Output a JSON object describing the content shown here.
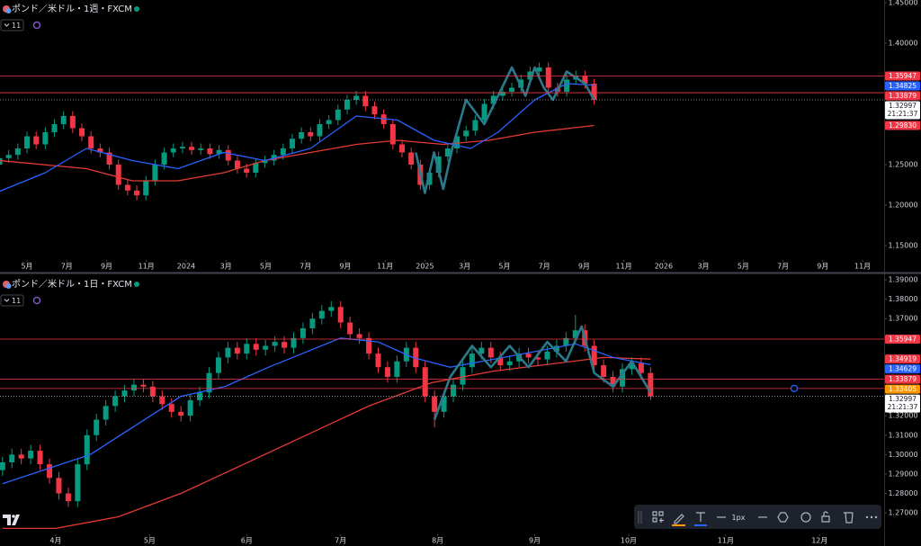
{
  "chart_data": [
    {
      "type": "candlestick",
      "title": "ポンド／米ドル・1週・FXCM",
      "interval": "11",
      "up_color": "#089981",
      "down_color": "#f23645",
      "xlim": [
        -5.9,
        187.4
      ],
      "xticks": [
        {
          "value": 0,
          "label": "5月"
        },
        {
          "value": 8.7,
          "label": "7月"
        },
        {
          "value": 17.4,
          "label": "9月"
        },
        {
          "value": 26.1,
          "label": "11月"
        },
        {
          "value": 34.8,
          "label": "2024"
        },
        {
          "value": 43.5,
          "label": "3月"
        },
        {
          "value": 52.2,
          "label": "5月"
        },
        {
          "value": 60.9,
          "label": "7月"
        },
        {
          "value": 69.6,
          "label": "9月"
        },
        {
          "value": 78.3,
          "label": "11月"
        },
        {
          "value": 87,
          "label": "2025"
        },
        {
          "value": 95.7,
          "label": "3月"
        },
        {
          "value": 104.4,
          "label": "5月"
        },
        {
          "value": 113.1,
          "label": "7月"
        },
        {
          "value": 121.8,
          "label": "9月"
        },
        {
          "value": 130.5,
          "label": "11月"
        },
        {
          "value": 139.2,
          "label": "2026"
        },
        {
          "value": 147.9,
          "label": "3月"
        },
        {
          "value": 156.6,
          "label": "5月"
        },
        {
          "value": 165.3,
          "label": "7月"
        },
        {
          "value": 174,
          "label": "9月"
        },
        {
          "value": 182.7,
          "label": "11月"
        }
      ],
      "ylim": [
        1.1367,
        1.4533
      ],
      "yticks": [
        {
          "value": 1.45,
          "label": "1.45000"
        },
        {
          "value": 1.4,
          "label": "1.40000"
        },
        {
          "value": 1.25,
          "label": "1.25000"
        },
        {
          "value": 1.2,
          "label": "1.20000"
        },
        {
          "value": 1.15,
          "label": "1.15000"
        }
      ],
      "x": [
        -6,
        -4,
        -2,
        0,
        2,
        4,
        6,
        8,
        10,
        12,
        14,
        16,
        18,
        20,
        22,
        24,
        26,
        28,
        30,
        32,
        34,
        36,
        38,
        40,
        42,
        44,
        46,
        48,
        50,
        52,
        54,
        56,
        58,
        60,
        62,
        64,
        66,
        68,
        70,
        72,
        74,
        76,
        78,
        80,
        82,
        84,
        86,
        88,
        90,
        92,
        94,
        96,
        98,
        100,
        102,
        104,
        106,
        108,
        110,
        112,
        114,
        116,
        118,
        120,
        122,
        124
      ],
      "open": [
        1.25,
        1.258,
        1.262,
        1.27,
        1.285,
        1.275,
        1.29,
        1.3,
        1.31,
        1.295,
        1.285,
        1.27,
        1.265,
        1.25,
        1.225,
        1.218,
        1.212,
        1.23,
        1.25,
        1.265,
        1.27,
        1.272,
        1.268,
        1.27,
        1.263,
        1.268,
        1.255,
        1.245,
        1.24,
        1.252,
        1.255,
        1.262,
        1.27,
        1.282,
        1.29,
        1.285,
        1.3,
        1.305,
        1.318,
        1.33,
        1.335,
        1.322,
        1.312,
        1.3,
        1.275,
        1.265,
        1.25,
        1.225,
        1.24,
        1.26,
        1.27,
        1.285,
        1.292,
        1.305,
        1.325,
        1.335,
        1.34,
        1.345,
        1.355,
        1.365,
        1.37,
        1.345,
        1.34,
        1.355,
        1.36,
        1.35
      ],
      "high": [
        1.264,
        1.268,
        1.276,
        1.291,
        1.291,
        1.296,
        1.306,
        1.316,
        1.316,
        1.301,
        1.291,
        1.276,
        1.271,
        1.256,
        1.231,
        1.224,
        1.236,
        1.256,
        1.271,
        1.276,
        1.278,
        1.278,
        1.276,
        1.276,
        1.274,
        1.274,
        1.261,
        1.251,
        1.258,
        1.261,
        1.268,
        1.276,
        1.288,
        1.296,
        1.296,
        1.306,
        1.311,
        1.324,
        1.336,
        1.341,
        1.341,
        1.328,
        1.318,
        1.306,
        1.281,
        1.271,
        1.256,
        1.246,
        1.266,
        1.276,
        1.291,
        1.298,
        1.311,
        1.331,
        1.341,
        1.346,
        1.351,
        1.361,
        1.371,
        1.376,
        1.376,
        1.351,
        1.361,
        1.366,
        1.366,
        1.356
      ],
      "low": [
        1.244,
        1.252,
        1.256,
        1.264,
        1.269,
        1.269,
        1.284,
        1.294,
        1.289,
        1.279,
        1.264,
        1.259,
        1.244,
        1.219,
        1.212,
        1.206,
        1.206,
        1.224,
        1.244,
        1.259,
        1.264,
        1.262,
        1.262,
        1.257,
        1.257,
        1.249,
        1.239,
        1.234,
        1.234,
        1.246,
        1.249,
        1.256,
        1.264,
        1.276,
        1.279,
        1.279,
        1.294,
        1.299,
        1.312,
        1.324,
        1.316,
        1.306,
        1.294,
        1.269,
        1.259,
        1.244,
        1.219,
        1.219,
        1.234,
        1.254,
        1.264,
        1.279,
        1.286,
        1.299,
        1.319,
        1.329,
        1.334,
        1.339,
        1.349,
        1.359,
        1.339,
        1.334,
        1.334,
        1.349,
        1.344,
        1.324
      ],
      "close": [
        1.258,
        1.262,
        1.27,
        1.285,
        1.275,
        1.29,
        1.3,
        1.31,
        1.295,
        1.285,
        1.27,
        1.265,
        1.25,
        1.225,
        1.218,
        1.212,
        1.23,
        1.25,
        1.265,
        1.27,
        1.272,
        1.268,
        1.27,
        1.263,
        1.268,
        1.255,
        1.245,
        1.24,
        1.252,
        1.255,
        1.262,
        1.27,
        1.282,
        1.29,
        1.285,
        1.3,
        1.305,
        1.318,
        1.33,
        1.335,
        1.322,
        1.312,
        1.3,
        1.275,
        1.265,
        1.25,
        1.225,
        1.24,
        1.26,
        1.27,
        1.285,
        1.292,
        1.305,
        1.325,
        1.335,
        1.34,
        1.345,
        1.355,
        1.365,
        1.37,
        1.345,
        1.34,
        1.355,
        1.36,
        1.35,
        1.32997
      ],
      "series": [
        {
          "color": "#e53935",
          "width": 1.3,
          "x": [
            -6,
            13,
            23,
            33,
            43,
            52,
            62,
            72,
            81,
            91,
            101,
            111,
            124
          ],
          "values": [
            1.255,
            1.245,
            1.23,
            1.23,
            1.24,
            1.255,
            1.265,
            1.275,
            1.28,
            1.275,
            1.28,
            1.29,
            1.2983
          ]
        },
        {
          "color": "#2962ff",
          "width": 1.3,
          "x": [
            -6,
            4,
            13,
            23,
            33,
            43,
            52,
            62,
            72,
            81,
            89,
            97,
            103,
            111,
            118,
            124
          ],
          "values": [
            1.217,
            1.24,
            1.27,
            1.255,
            1.245,
            1.265,
            1.255,
            1.27,
            1.31,
            1.305,
            1.28,
            1.27,
            1.29,
            1.33,
            1.35,
            1.34825
          ]
        },
        {
          "color": "#2b7a8c",
          "width": 2.6,
          "x": [
            85,
            87,
            89,
            91,
            93,
            96,
            100,
            106,
            109,
            111,
            113,
            115,
            118,
            122,
            124
          ],
          "values": [
            1.265,
            1.215,
            1.265,
            1.22,
            1.27,
            1.33,
            1.3,
            1.37,
            1.335,
            1.37,
            1.345,
            1.33,
            1.365,
            1.35,
            1.33
          ]
        }
      ],
      "hlines": [
        {
          "value": 1.35947,
          "color": "#f23645"
        },
        {
          "value": 1.33879,
          "color": "#f23645"
        },
        {
          "value": 1.32997,
          "color": "#b2b5be",
          "dotted": true
        }
      ],
      "price_tags": [
        {
          "value": 1.35947,
          "color": "#f23645"
        },
        {
          "value": 1.34825,
          "color": "#2962ff"
        },
        {
          "value": 1.33879,
          "color": "#f23645"
        },
        {
          "value": 1.32997,
          "color": "#ffffff",
          "timer": "21:21:37"
        },
        {
          "value": 1.2983,
          "label": "1.29830",
          "color": "#f23645"
        }
      ]
    },
    {
      "type": "candlestick",
      "title": "ポンド／米ドル・1日・FXCM",
      "interval": "11",
      "up_color": "#089981",
      "down_color": "#f23645",
      "xlim": [
        -17.8,
        264.6
      ],
      "xticks": [
        {
          "value": 0,
          "label": "4月"
        },
        {
          "value": 30,
          "label": "5月"
        },
        {
          "value": 61,
          "label": "6月"
        },
        {
          "value": 91,
          "label": "7月"
        },
        {
          "value": 122,
          "label": "8月"
        },
        {
          "value": 153,
          "label": "9月"
        },
        {
          "value": 183,
          "label": "10月"
        },
        {
          "value": 214,
          "label": "11月"
        },
        {
          "value": 244,
          "label": "12月"
        }
      ],
      "ylim": [
        1.2608,
        1.3928
      ],
      "yticks": [
        {
          "value": 1.39,
          "label": "1.39000"
        },
        {
          "value": 1.38,
          "label": "1.38000"
        },
        {
          "value": 1.37,
          "label": "1.37000"
        },
        {
          "value": 1.32,
          "label": "1.32000"
        },
        {
          "value": 1.31,
          "label": "1.31000"
        },
        {
          "value": 1.3,
          "label": "1.30000"
        },
        {
          "value": 1.29,
          "label": "1.29000"
        },
        {
          "value": 1.28,
          "label": "1.28000"
        },
        {
          "value": 1.27,
          "label": "1.27000"
        }
      ],
      "x": [
        -17,
        -14,
        -11,
        -8,
        -5,
        -2,
        1,
        4,
        7,
        10,
        13,
        16,
        19,
        22,
        25,
        28,
        31,
        34,
        37,
        40,
        43,
        46,
        49,
        52,
        55,
        58,
        61,
        64,
        67,
        70,
        73,
        76,
        79,
        82,
        85,
        88,
        91,
        94,
        97,
        100,
        103,
        106,
        109,
        112,
        115,
        118,
        121,
        124,
        127,
        130,
        133,
        136,
        139,
        142,
        145,
        148,
        151,
        154,
        157,
        160,
        163,
        166,
        169,
        172,
        175,
        178,
        181,
        184,
        187,
        190
      ],
      "open": [
        1.292,
        1.296,
        1.3,
        1.298,
        1.302,
        1.295,
        1.288,
        1.28,
        1.276,
        1.295,
        1.31,
        1.318,
        1.325,
        1.33,
        1.333,
        1.336,
        1.335,
        1.33,
        1.326,
        1.322,
        1.32,
        1.328,
        1.332,
        1.342,
        1.35,
        1.355,
        1.352,
        1.357,
        1.354,
        1.356,
        1.358,
        1.355,
        1.36,
        1.365,
        1.37,
        1.374,
        1.376,
        1.368,
        1.362,
        1.36,
        1.352,
        1.345,
        1.34,
        1.348,
        1.355,
        1.345,
        1.33,
        1.322,
        1.33,
        1.336,
        1.345,
        1.352,
        1.355,
        1.35,
        1.346,
        1.348,
        1.352,
        1.35,
        1.349,
        1.353,
        1.356,
        1.36,
        1.364,
        1.356,
        1.346,
        1.34,
        1.335,
        1.344,
        1.347,
        1.342
      ],
      "high": [
        1.299,
        1.303,
        1.303,
        1.305,
        1.305,
        1.298,
        1.291,
        1.283,
        1.298,
        1.313,
        1.321,
        1.328,
        1.333,
        1.336,
        1.339,
        1.339,
        1.338,
        1.333,
        1.329,
        1.325,
        1.331,
        1.335,
        1.345,
        1.353,
        1.358,
        1.358,
        1.36,
        1.36,
        1.359,
        1.361,
        1.361,
        1.363,
        1.368,
        1.373,
        1.377,
        1.379,
        1.379,
        1.371,
        1.365,
        1.363,
        1.355,
        1.348,
        1.351,
        1.358,
        1.358,
        1.348,
        1.333,
        1.333,
        1.339,
        1.348,
        1.355,
        1.358,
        1.358,
        1.353,
        1.351,
        1.355,
        1.355,
        1.353,
        1.356,
        1.359,
        1.363,
        1.372,
        1.367,
        1.359,
        1.349,
        1.343,
        1.347,
        1.35,
        1.35,
        1.345
      ],
      "low": [
        1.289,
        1.293,
        1.295,
        1.295,
        1.292,
        1.285,
        1.277,
        1.273,
        1.273,
        1.292,
        1.307,
        1.315,
        1.322,
        1.327,
        1.33,
        1.332,
        1.327,
        1.323,
        1.319,
        1.317,
        1.317,
        1.325,
        1.329,
        1.339,
        1.347,
        1.349,
        1.349,
        1.351,
        1.351,
        1.353,
        1.352,
        1.352,
        1.357,
        1.362,
        1.367,
        1.371,
        1.365,
        1.359,
        1.357,
        1.349,
        1.342,
        1.337,
        1.337,
        1.345,
        1.342,
        1.327,
        1.314,
        1.319,
        1.327,
        1.333,
        1.342,
        1.349,
        1.347,
        1.343,
        1.343,
        1.345,
        1.347,
        1.346,
        1.346,
        1.35,
        1.353,
        1.357,
        1.353,
        1.343,
        1.337,
        1.332,
        1.332,
        1.341,
        1.339,
        1.328
      ],
      "close": [
        1.296,
        1.3,
        1.298,
        1.302,
        1.295,
        1.288,
        1.28,
        1.276,
        1.295,
        1.31,
        1.318,
        1.325,
        1.33,
        1.333,
        1.336,
        1.335,
        1.33,
        1.326,
        1.322,
        1.32,
        1.328,
        1.332,
        1.342,
        1.35,
        1.355,
        1.352,
        1.357,
        1.354,
        1.356,
        1.358,
        1.355,
        1.36,
        1.365,
        1.37,
        1.374,
        1.376,
        1.368,
        1.362,
        1.36,
        1.352,
        1.345,
        1.34,
        1.348,
        1.355,
        1.345,
        1.33,
        1.322,
        1.33,
        1.336,
        1.345,
        1.352,
        1.355,
        1.35,
        1.346,
        1.348,
        1.352,
        1.35,
        1.349,
        1.353,
        1.356,
        1.36,
        1.364,
        1.356,
        1.346,
        1.34,
        1.335,
        1.344,
        1.347,
        1.342,
        1.32997
      ],
      "series": [
        {
          "color": "#e53935",
          "width": 1.3,
          "x": [
            -17,
            0,
            20,
            40,
            60,
            80,
            100,
            120,
            140,
            160,
            175,
            190
          ],
          "values": [
            1.262,
            1.262,
            1.268,
            1.28,
            1.295,
            1.31,
            1.325,
            1.337,
            1.343,
            1.347,
            1.35,
            1.34919
          ]
        },
        {
          "color": "#2962ff",
          "width": 1.3,
          "x": [
            -17,
            11,
            40,
            54,
            68,
            91,
            103,
            114,
            126,
            143,
            166,
            178,
            190
          ],
          "values": [
            1.285,
            1.3,
            1.33,
            1.335,
            1.345,
            1.36,
            1.358,
            1.35,
            1.345,
            1.35,
            1.357,
            1.35,
            1.34629
          ]
        },
        {
          "color": "#2b7a8c",
          "width": 2.6,
          "x": [
            121,
            126,
            133,
            139,
            145,
            151,
            157,
            163,
            168,
            172,
            178,
            184,
            190
          ],
          "values": [
            1.318,
            1.34,
            1.356,
            1.345,
            1.356,
            1.345,
            1.358,
            1.348,
            1.366,
            1.342,
            1.335,
            1.348,
            1.332
          ]
        }
      ],
      "hlines": [
        {
          "value": 1.35947,
          "color": "#f23645"
        },
        {
          "value": 1.33879,
          "color": "#f23645"
        },
        {
          "value": 1.33405,
          "color": "#f23645",
          "handle": true
        },
        {
          "value": 1.32997,
          "color": "#b2b5be",
          "dotted": true
        }
      ],
      "price_tags": [
        {
          "value": 1.35947,
          "color": "#f23645"
        },
        {
          "value": 1.34919,
          "color": "#f23645"
        },
        {
          "value": 1.34629,
          "color": "#2962ff"
        },
        {
          "value": 1.33879,
          "color": "#f23645"
        },
        {
          "value": 1.33405,
          "color": "#ff9800"
        },
        {
          "value": 1.32997,
          "color": "#ffffff",
          "timer": "21:21:37"
        }
      ]
    }
  ],
  "toolbar": {
    "stroke_width": "1px"
  }
}
